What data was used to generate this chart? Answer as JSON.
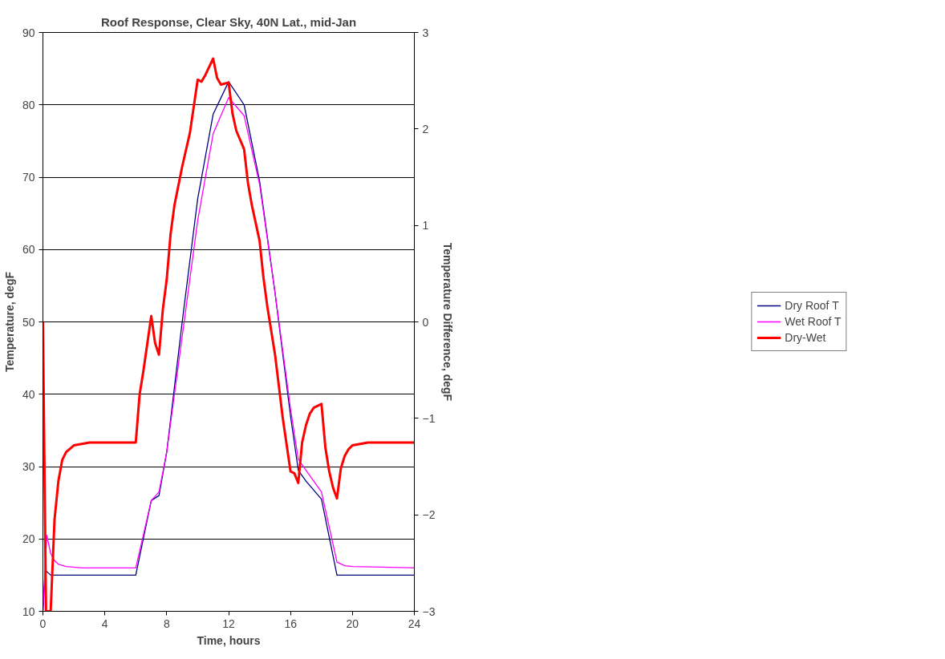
{
  "chart_data": {
    "type": "line",
    "title": "Roof Response, Clear Sky, 40N Lat., mid-Jan",
    "xlabel": "Time, hours",
    "ylabel": "Temperature, degF",
    "y2label": "Temperature Difference, degF",
    "xlim": [
      0,
      24
    ],
    "xticks": [
      0,
      4,
      8,
      12,
      16,
      20,
      24
    ],
    "ylim": [
      10,
      90
    ],
    "yticks": [
      10,
      20,
      30,
      40,
      50,
      60,
      70,
      80,
      90
    ],
    "y2lim": [
      -3,
      3
    ],
    "y2ticks": [
      -3,
      -2,
      -1,
      0,
      1,
      2,
      3
    ],
    "grid": "y",
    "legend": "right",
    "marker": "none",
    "series": [
      {
        "name": "Dry Roof T",
        "color": "#000080",
        "x": [
          0,
          0.15,
          0.25,
          0.5,
          1,
          6,
          7,
          7.5,
          8,
          9,
          10,
          11,
          12,
          13,
          14,
          15,
          16,
          16.5,
          17,
          18,
          19,
          24
        ],
        "values": [
          10,
          15.5,
          15.5,
          15,
          15,
          15,
          25.3,
          26,
          32,
          50,
          67,
          78.7,
          83.2,
          80,
          69.5,
          54,
          37,
          29.5,
          28,
          25.5,
          15,
          15
        ]
      },
      {
        "name": "Wet Roof T",
        "color": "#ff00ff",
        "x": [
          0,
          0.25,
          0.5,
          0.75,
          1,
          1.5,
          2.5,
          6,
          7,
          7.5,
          8,
          9,
          10,
          11,
          12,
          13,
          14,
          15,
          16,
          16.5,
          17,
          18,
          19,
          19.5,
          20,
          24
        ],
        "values": [
          10,
          20.5,
          18,
          17,
          16.5,
          16.2,
          16,
          16,
          25.3,
          26.5,
          32,
          48,
          64,
          76,
          81,
          78.5,
          69,
          54,
          38,
          31,
          29.5,
          26.5,
          16.8,
          16.3,
          16.2,
          16
        ]
      },
      {
        "name": "Dry-Wet",
        "color": "#ff0000",
        "axis": "y2",
        "x": [
          0,
          0.2,
          0.5,
          0.75,
          1,
          1.25,
          1.5,
          2,
          3,
          6,
          6.25,
          6.5,
          6.75,
          7,
          7.25,
          7.5,
          7.75,
          8,
          8.25,
          8.5,
          9,
          9.5,
          10,
          10.25,
          10.5,
          11,
          11.25,
          11.5,
          12,
          12.25,
          12.5,
          13,
          13.25,
          13.5,
          14,
          14.25,
          14.5,
          15,
          15.5,
          16,
          16.25,
          16.5,
          16.75,
          17,
          17.25,
          17.5,
          18,
          18.25,
          18.5,
          18.75,
          19,
          19.25,
          19.5,
          19.75,
          20,
          21,
          24
        ],
        "values": [
          0,
          -3,
          -3,
          -2.05,
          -1.65,
          -1.43,
          -1.35,
          -1.28,
          -1.25,
          -1.25,
          -0.75,
          -0.5,
          -0.22,
          0.06,
          -0.22,
          -0.34,
          0.13,
          0.44,
          0.91,
          1.21,
          1.61,
          1.96,
          2.51,
          2.49,
          2.56,
          2.73,
          2.53,
          2.46,
          2.48,
          2.16,
          1.98,
          1.79,
          1.44,
          1.21,
          0.84,
          0.46,
          0.16,
          -0.34,
          -1.0,
          -1.55,
          -1.57,
          -1.67,
          -1.25,
          -1.07,
          -0.95,
          -0.89,
          -0.85,
          -1.3,
          -1.55,
          -1.72,
          -1.83,
          -1.52,
          -1.39,
          -1.32,
          -1.28,
          -1.25,
          -1.25
        ]
      }
    ]
  }
}
